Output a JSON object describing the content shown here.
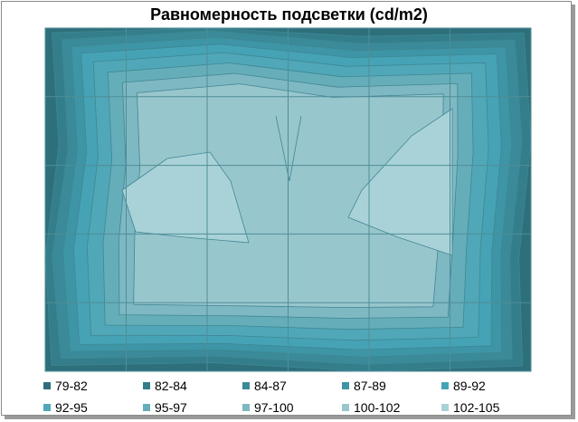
{
  "chart_data": {
    "type": "heatmap",
    "title": "Равномерность подсветки (cd/m2)",
    "xlabel": "",
    "ylabel": "",
    "columns": 6,
    "rows": 5,
    "bands": [
      {
        "label": "79-82",
        "color": "#2e6f7c"
      },
      {
        "label": "82-84",
        "color": "#347d8b"
      },
      {
        "label": "84-87",
        "color": "#3a8a99"
      },
      {
        "label": "87-89",
        "color": "#3d95a6"
      },
      {
        "label": "89-92",
        "color": "#45a3b5"
      },
      {
        "label": "92-95",
        "color": "#50a7b7"
      },
      {
        "label": "95-97",
        "color": "#66adba"
      },
      {
        "label": "97-100",
        "color": "#7eb8c2"
      },
      {
        "label": "100-102",
        "color": "#98c6cd"
      },
      {
        "label": "102-105",
        "color": "#a9d2d8"
      }
    ]
  }
}
